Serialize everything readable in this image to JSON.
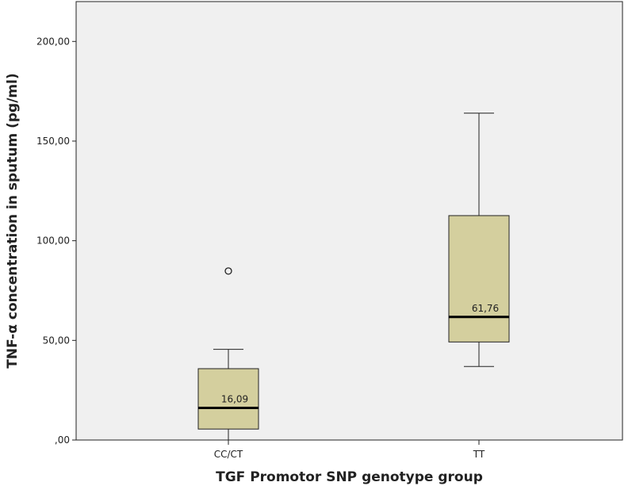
{
  "chart_data": {
    "type": "boxplot",
    "title": "",
    "xlabel": "TGF Promotor SNP genotype group",
    "ylabel": "TNF-α concentration in sputum (pg/ml)",
    "ylim": [
      0,
      220
    ],
    "yticks": [
      0,
      50,
      100,
      150,
      200
    ],
    "ytick_labels": [
      ",00",
      "50,00",
      "100,00",
      "150,00",
      "200,00"
    ],
    "grid": false,
    "categories": [
      "CC/CT",
      "TT"
    ],
    "boxes": [
      {
        "category": "CC/CT",
        "whisker_low": 0,
        "q1": 5.5,
        "median": 16.09,
        "q3": 35.8,
        "whisker_high": 45.5,
        "outliers": [
          84.8
        ],
        "median_label": "16,09"
      },
      {
        "category": "TT",
        "whisker_low": 36.9,
        "q1": 49.2,
        "median": 61.76,
        "q3": 112.6,
        "whisker_high": 164.0,
        "outliers": [],
        "median_label": "61,76"
      }
    ],
    "colors": {
      "plot_background": "#f0f0f0",
      "box_fill": "#d4cf9e",
      "stroke": "#222222"
    }
  }
}
